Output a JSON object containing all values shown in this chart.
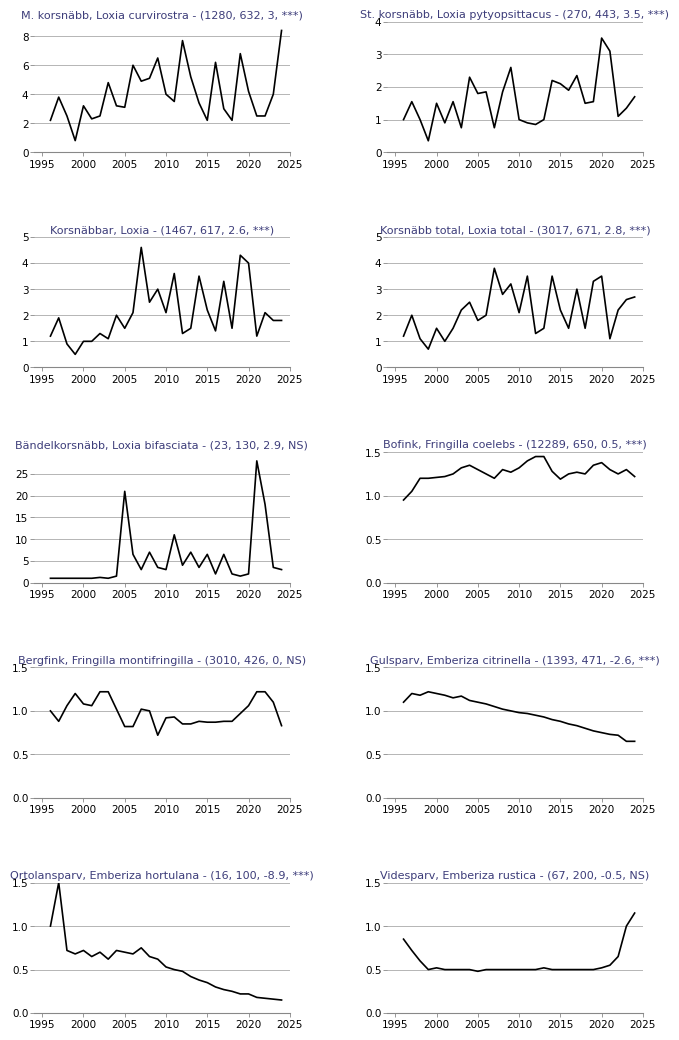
{
  "panels": [
    {
      "title": "M. korsnäbb, ",
      "title_italic": "Loxia curvirostra",
      "title_suffix": " - (1280, 632, 3, ***)",
      "years": [
        1996,
        1997,
        1998,
        1999,
        2000,
        2001,
        2002,
        2003,
        2004,
        2005,
        2006,
        2007,
        2008,
        2009,
        2010,
        2011,
        2012,
        2013,
        2014,
        2015,
        2016,
        2017,
        2018,
        2019,
        2020,
        2021,
        2022,
        2023,
        2024
      ],
      "values": [
        2.2,
        3.8,
        2.5,
        0.8,
        3.2,
        2.3,
        2.5,
        4.8,
        3.2,
        3.1,
        6.0,
        4.9,
        5.1,
        6.5,
        4.0,
        3.5,
        7.7,
        5.2,
        3.4,
        2.2,
        6.2,
        3.0,
        2.2,
        6.8,
        4.2,
        2.5,
        2.5,
        4.0,
        8.4
      ],
      "ylim": [
        0,
        9
      ],
      "yticks": [
        0,
        2,
        4,
        6,
        8
      ]
    },
    {
      "title": "St. korsnäbb, ",
      "title_italic": "Loxia pytyopsittacus",
      "title_suffix": " - (270, 443, 3.5, ***)",
      "years": [
        1996,
        1997,
        1998,
        1999,
        2000,
        2001,
        2002,
        2003,
        2004,
        2005,
        2006,
        2007,
        2008,
        2009,
        2010,
        2011,
        2012,
        2013,
        2014,
        2015,
        2016,
        2017,
        2018,
        2019,
        2020,
        2021,
        2022,
        2023,
        2024
      ],
      "values": [
        1.0,
        1.55,
        1.0,
        0.35,
        1.5,
        0.9,
        1.55,
        0.75,
        2.3,
        1.8,
        1.85,
        0.75,
        1.85,
        2.6,
        1.0,
        0.9,
        0.85,
        1.0,
        2.2,
        2.1,
        1.9,
        2.35,
        1.5,
        1.55,
        3.5,
        3.1,
        1.1,
        1.35,
        1.7
      ],
      "ylim": [
        0,
        4
      ],
      "yticks": [
        0,
        1,
        2,
        3,
        4
      ]
    },
    {
      "title": "Korsnäbbar, ",
      "title_italic": "Loxia",
      "title_suffix": " - (1467, 617, 2.6, ***)",
      "years": [
        1996,
        1997,
        1998,
        1999,
        2000,
        2001,
        2002,
        2003,
        2004,
        2005,
        2006,
        2007,
        2008,
        2009,
        2010,
        2011,
        2012,
        2013,
        2014,
        2015,
        2016,
        2017,
        2018,
        2019,
        2020,
        2021,
        2022,
        2023,
        2024
      ],
      "values": [
        1.2,
        1.9,
        0.9,
        0.5,
        1.0,
        1.0,
        1.3,
        1.1,
        2.0,
        1.5,
        2.1,
        4.6,
        2.5,
        3.0,
        2.1,
        3.6,
        1.3,
        1.5,
        3.5,
        2.2,
        1.4,
        3.3,
        1.5,
        4.3,
        4.0,
        1.2,
        2.1,
        1.8,
        1.8
      ],
      "ylim": [
        0,
        5
      ],
      "yticks": [
        0,
        1,
        2,
        3,
        4,
        5
      ]
    },
    {
      "title": "Korsnäbb total, ",
      "title_italic": "Loxia total",
      "title_suffix": " - (3017, 671, 2.8, ***)",
      "years": [
        1996,
        1997,
        1998,
        1999,
        2000,
        2001,
        2002,
        2003,
        2004,
        2005,
        2006,
        2007,
        2008,
        2009,
        2010,
        2011,
        2012,
        2013,
        2014,
        2015,
        2016,
        2017,
        2018,
        2019,
        2020,
        2021,
        2022,
        2023,
        2024
      ],
      "values": [
        1.2,
        2.0,
        1.1,
        0.7,
        1.5,
        1.0,
        1.5,
        2.2,
        2.5,
        1.8,
        2.0,
        3.8,
        2.8,
        3.2,
        2.1,
        3.5,
        1.3,
        1.5,
        3.5,
        2.2,
        1.5,
        3.0,
        1.5,
        3.3,
        3.5,
        1.1,
        2.2,
        2.6,
        2.7
      ],
      "ylim": [
        0,
        5
      ],
      "yticks": [
        0,
        1,
        2,
        3,
        4,
        5
      ]
    },
    {
      "title": "Bändelkorsnäbb, ",
      "title_italic": "Loxia bifasciata",
      "title_suffix": " - (23, 130, 2.9, NS)",
      "years": [
        1996,
        1997,
        1998,
        1999,
        2000,
        2001,
        2002,
        2003,
        2004,
        2005,
        2006,
        2007,
        2008,
        2009,
        2010,
        2011,
        2012,
        2013,
        2014,
        2015,
        2016,
        2017,
        2018,
        2019,
        2020,
        2021,
        2022,
        2023,
        2024
      ],
      "values": [
        1.0,
        1.0,
        1.0,
        1.0,
        1.0,
        1.0,
        1.2,
        1.0,
        1.5,
        21.0,
        6.5,
        3.0,
        7.0,
        3.5,
        3.0,
        11.0,
        4.0,
        7.0,
        3.5,
        6.5,
        2.0,
        6.5,
        2.0,
        1.5,
        2.0,
        28.0,
        18.0,
        3.5,
        3.0
      ],
      "ylim": [
        0,
        30
      ],
      "yticks": [
        0,
        5,
        10,
        15,
        20,
        25
      ]
    },
    {
      "title": "Bofink, ",
      "title_italic": "Fringilla coelebs",
      "title_suffix": " - (12289, 650, 0.5, ***)",
      "years": [
        1996,
        1997,
        1998,
        1999,
        2000,
        2001,
        2002,
        2003,
        2004,
        2005,
        2006,
        2007,
        2008,
        2009,
        2010,
        2011,
        2012,
        2013,
        2014,
        2015,
        2016,
        2017,
        2018,
        2019,
        2020,
        2021,
        2022,
        2023,
        2024
      ],
      "values": [
        0.95,
        1.05,
        1.2,
        1.2,
        1.21,
        1.22,
        1.25,
        1.32,
        1.35,
        1.3,
        1.25,
        1.2,
        1.3,
        1.27,
        1.32,
        1.4,
        1.45,
        1.45,
        1.28,
        1.19,
        1.25,
        1.27,
        1.25,
        1.35,
        1.38,
        1.3,
        1.25,
        1.3,
        1.22
      ],
      "ylim": [
        0.0,
        1.5
      ],
      "yticks": [
        0.0,
        0.5,
        1.0,
        1.5
      ]
    },
    {
      "title": "Bergfink, ",
      "title_italic": "Fringilla montifringilla",
      "title_suffix": " - (3010, 426, 0, NS)",
      "years": [
        1996,
        1997,
        1998,
        1999,
        2000,
        2001,
        2002,
        2003,
        2004,
        2005,
        2006,
        2007,
        2008,
        2009,
        2010,
        2011,
        2012,
        2013,
        2014,
        2015,
        2016,
        2017,
        2018,
        2019,
        2020,
        2021,
        2022,
        2023,
        2024
      ],
      "values": [
        1.0,
        0.88,
        1.06,
        1.2,
        1.08,
        1.06,
        1.22,
        1.22,
        1.02,
        0.82,
        0.82,
        1.02,
        1.0,
        0.72,
        0.92,
        0.93,
        0.85,
        0.85,
        0.88,
        0.87,
        0.87,
        0.88,
        0.88,
        0.97,
        1.06,
        1.22,
        1.22,
        1.1,
        0.83
      ],
      "ylim": [
        0.0,
        1.5
      ],
      "yticks": [
        0.0,
        0.5,
        1.0,
        1.5
      ]
    },
    {
      "title": "Gulsparv, ",
      "title_italic": "Emberiza citrinella",
      "title_suffix": " - (1393, 471, -2.6, ***)",
      "years": [
        1996,
        1997,
        1998,
        1999,
        2000,
        2001,
        2002,
        2003,
        2004,
        2005,
        2006,
        2007,
        2008,
        2009,
        2010,
        2011,
        2012,
        2013,
        2014,
        2015,
        2016,
        2017,
        2018,
        2019,
        2020,
        2021,
        2022,
        2023,
        2024
      ],
      "values": [
        1.1,
        1.2,
        1.18,
        1.22,
        1.2,
        1.18,
        1.15,
        1.17,
        1.12,
        1.1,
        1.08,
        1.05,
        1.02,
        1.0,
        0.98,
        0.97,
        0.95,
        0.93,
        0.9,
        0.88,
        0.85,
        0.83,
        0.8,
        0.77,
        0.75,
        0.73,
        0.72,
        0.65,
        0.65
      ],
      "ylim": [
        0.0,
        1.5
      ],
      "yticks": [
        0.0,
        0.5,
        1.0,
        1.5
      ]
    },
    {
      "title": "Ortolansparv, ",
      "title_italic": "Emberiza hortulana",
      "title_suffix": " - (16, 100, -8.9, ***)",
      "years": [
        1996,
        1997,
        1998,
        1999,
        2000,
        2001,
        2002,
        2003,
        2004,
        2005,
        2006,
        2007,
        2008,
        2009,
        2010,
        2011,
        2012,
        2013,
        2014,
        2015,
        2016,
        2017,
        2018,
        2019,
        2020,
        2021,
        2022,
        2023,
        2024
      ],
      "values": [
        1.0,
        1.5,
        0.72,
        0.68,
        0.72,
        0.65,
        0.7,
        0.62,
        0.72,
        0.7,
        0.68,
        0.75,
        0.65,
        0.62,
        0.53,
        0.5,
        0.48,
        0.42,
        0.38,
        0.35,
        0.3,
        0.27,
        0.25,
        0.22,
        0.22,
        0.18,
        0.17,
        0.16,
        0.15
      ],
      "ylim": [
        0.0,
        1.5
      ],
      "yticks": [
        0.0,
        0.5,
        1.0,
        1.5
      ]
    },
    {
      "title": "Videsparv, ",
      "title_italic": "Emberiza rustica",
      "title_suffix": " - (67, 200, -0.5, NS)",
      "years": [
        1996,
        1997,
        1998,
        1999,
        2000,
        2001,
        2002,
        2003,
        2004,
        2005,
        2006,
        2007,
        2008,
        2009,
        2010,
        2011,
        2012,
        2013,
        2014,
        2015,
        2016,
        2017,
        2018,
        2019,
        2020,
        2021,
        2022,
        2023,
        2024
      ],
      "values": [
        0.85,
        0.72,
        0.6,
        0.5,
        0.52,
        0.5,
        0.5,
        0.5,
        0.5,
        0.48,
        0.5,
        0.5,
        0.5,
        0.5,
        0.5,
        0.5,
        0.5,
        0.52,
        0.5,
        0.5,
        0.5,
        0.5,
        0.5,
        0.5,
        0.52,
        0.55,
        0.65,
        1.0,
        1.15
      ],
      "ylim": [
        0.0,
        1.5
      ],
      "yticks": [
        0.0,
        0.5,
        1.0,
        1.5
      ]
    }
  ],
  "xlim": [
    1994,
    2025
  ],
  "xticks": [
    1995,
    2000,
    2005,
    2010,
    2015,
    2020,
    2025
  ],
  "line_color": "black",
  "line_width": 1.2,
  "bg_color": "white",
  "grid_color": "#aaaaaa",
  "title_color": "#3d3d7a",
  "title_fontsize": 8.0,
  "tick_fontsize": 7.5
}
